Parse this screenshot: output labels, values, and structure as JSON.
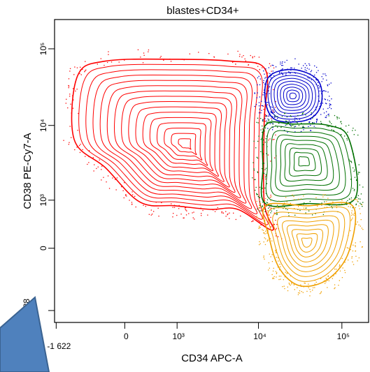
{
  "chart_data": {
    "type": "contour",
    "title": "blastes+CD34+",
    "x_label": "CD34 APC-A",
    "y_label": "CD38 PE-Cy7-A",
    "x_scale": "biexponential",
    "y_scale": "biexponential",
    "xlim": [
      -1700,
      209000
    ],
    "ylim": [
      -2300,
      241000
    ],
    "xticks": [
      {
        "value": -1622,
        "label": "-1 622"
      },
      0,
      {
        "value": 1000,
        "label": "10³"
      },
      {
        "value": 10000,
        "label": "10⁴"
      },
      {
        "value": 100000,
        "label": "10⁵"
      }
    ],
    "yticks": [
      {
        "value": -1588,
        "label": "-1 588"
      },
      0,
      {
        "value": 1000,
        "label": "10³"
      },
      {
        "value": 10000,
        "label": "10⁴"
      },
      {
        "value": 100000,
        "label": "10⁵"
      }
    ],
    "series": [
      {
        "color": "#ff0000",
        "x": [
          -860,
          -283,
          935,
          4630,
          12100,
          11700,
          11700,
          14800,
          5650,
          2600,
          935,
          217,
          -283,
          -950
        ],
        "y": [
          43500,
          69000,
          73000,
          69000,
          53600,
          11100,
          935,
          286,
          725,
          725,
          825,
          935,
          2800,
          6570
        ]
      },
      {
        "color": "#0000cc",
        "x": [
          13400,
          26200,
          51500,
          56500,
          38500,
          16200,
          12100
        ],
        "y": [
          43500,
          53600,
          39000,
          18800,
          11800,
          11800,
          20800
        ]
      },
      {
        "color": "#007000",
        "x": [
          12100,
          26200,
          69000,
          122000,
          143000,
          38500,
          12100,
          11300
        ],
        "y": [
          10000,
          10400,
          10000,
          6570,
          1050,
          890,
          890,
          2800
        ]
      },
      {
        "color": "#f0a000",
        "x": [
          12100,
          38500,
          134000,
          122000,
          69000,
          31700,
          17900,
          13400
        ],
        "y": [
          825,
          825,
          825,
          -42,
          -530,
          -695,
          -325,
          170
        ]
      }
    ]
  }
}
